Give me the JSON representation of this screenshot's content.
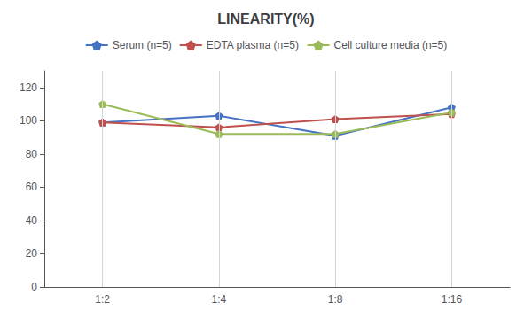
{
  "chart_data": {
    "type": "line",
    "title": "LINEARITY(%)",
    "categories": [
      "1:2",
      "1:4",
      "1:8",
      "1:16"
    ],
    "series": [
      {
        "name": "Serum (n=5)",
        "color": "#4472C4",
        "marker": "pentagon",
        "values": [
          99,
          103,
          91,
          108
        ]
      },
      {
        "name": "EDTA plasma (n=5)",
        "color": "#C0504D",
        "marker": "pentagon",
        "values": [
          99,
          96,
          101,
          104
        ]
      },
      {
        "name": "Cell culture media (n=5)",
        "color": "#9BBB59",
        "marker": "pentagon",
        "values": [
          110,
          92,
          92,
          105
        ]
      }
    ],
    "ylim": [
      0,
      130
    ],
    "yticks": [
      0,
      20,
      40,
      60,
      80,
      100,
      120
    ],
    "grid": "x",
    "legend": "top"
  }
}
